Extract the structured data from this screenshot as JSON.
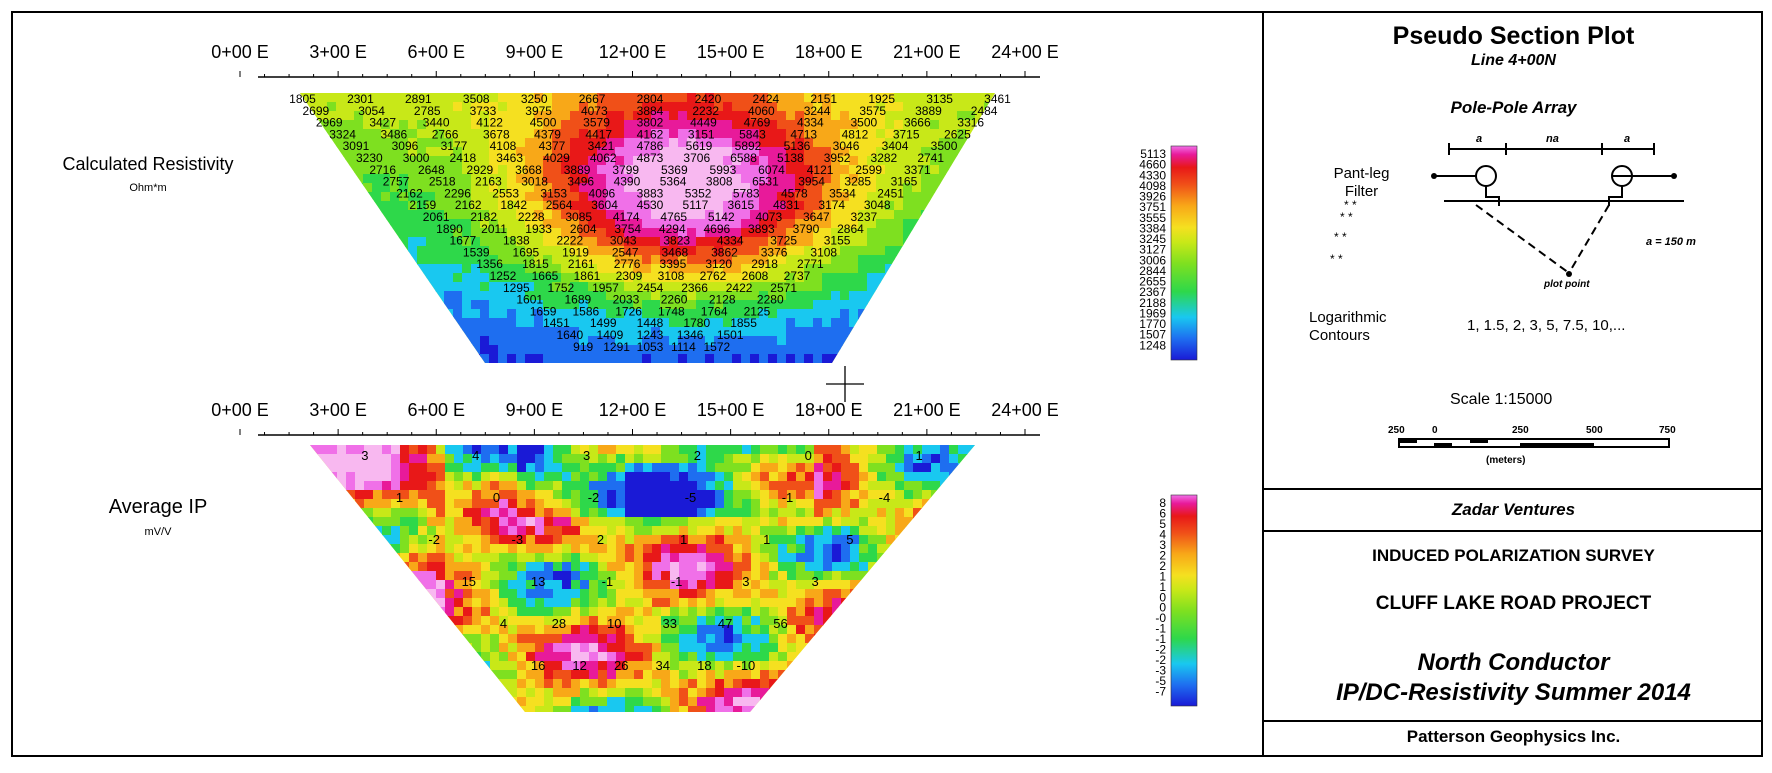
{
  "chart_data": [
    {
      "type": "heatmap",
      "title": "Calculated Resistivity",
      "units": "Ohm*m",
      "x_ticks": [
        "0+00 E",
        "3+00 E",
        "6+00 E",
        "9+00 E",
        "12+00 E",
        "15+00 E",
        "18+00 E",
        "21+00 E",
        "24+00 E"
      ],
      "colorbar_labels": [
        "5113",
        "4660",
        "4330",
        "4098",
        "3926",
        "3751",
        "3555",
        "3384",
        "3245",
        "3127",
        "3006",
        "2844",
        "2655",
        "2367",
        "2188",
        "1969",
        "1770",
        "1507",
        "1248"
      ],
      "contour_labels": [
        [
          "1805",
          "2301",
          "2891",
          "3508",
          "3250",
          "2667",
          "2804",
          "2420",
          "2424",
          "2151",
          "1925",
          "3135",
          "3461"
        ],
        [
          "2699",
          "3054",
          "2785",
          "3733",
          "3975",
          "4073",
          "3884",
          "2232",
          "4060",
          "3244",
          "3575",
          "3889",
          "2484"
        ],
        [
          "2969",
          "3427",
          "3440",
          "4122",
          "4500",
          "3579",
          "3802",
          "4449",
          "4769",
          "4334",
          "3500",
          "3666",
          "3316"
        ],
        [
          "3324",
          "3486",
          "2766",
          "3678",
          "4379",
          "4417",
          "4162",
          "3151",
          "5843",
          "4713",
          "4812",
          "3715",
          "2625"
        ],
        [
          "3091",
          "3096",
          "3177",
          "4108",
          "4377",
          "3421",
          "4786",
          "5619",
          "5892",
          "5136",
          "3046",
          "3404",
          "3500"
        ],
        [
          "3230",
          "3000",
          "2418",
          "3463",
          "4029",
          "4062",
          "4873",
          "3706",
          "6588",
          "5138",
          "3952",
          "3282",
          "2741"
        ],
        [
          "2716",
          "2648",
          "2929",
          "3668",
          "3889",
          "3799",
          "5369",
          "5993",
          "6074",
          "4121",
          "2599",
          "3371"
        ],
        [
          "2757",
          "2518",
          "2163",
          "3018",
          "3496",
          "4390",
          "5364",
          "3808",
          "6531",
          "3954",
          "3285",
          "3165"
        ],
        [
          "2162",
          "2296",
          "2553",
          "3153",
          "4096",
          "3883",
          "5352",
          "5783",
          "4578",
          "3534",
          "2451"
        ],
        [
          "2159",
          "2162",
          "1842",
          "2564",
          "3604",
          "4530",
          "5117",
          "3615",
          "4831",
          "3174",
          "3048"
        ],
        [
          "2061",
          "2182",
          "2228",
          "3085",
          "4174",
          "4765",
          "5142",
          "4073",
          "3647",
          "3237"
        ],
        [
          "1890",
          "2011",
          "1933",
          "2604",
          "3754",
          "4294",
          "4696",
          "3893",
          "3790",
          "2864"
        ],
        [
          "1677",
          "1838",
          "2222",
          "3043",
          "3823",
          "4334",
          "3725",
          "3155"
        ],
        [
          "1539",
          "1695",
          "1919",
          "2547",
          "3468",
          "3862",
          "3376",
          "3108"
        ],
        [
          "1356",
          "1815",
          "2161",
          "2776",
          "3395",
          "3120",
          "2918",
          "2771"
        ],
        [
          "1252",
          "1665",
          "1861",
          "2309",
          "3108",
          "2762",
          "2608",
          "2737"
        ],
        [
          "1295",
          "1752",
          "1957",
          "2454",
          "2366",
          "2422",
          "2571"
        ],
        [
          "1601",
          "1689",
          "2033",
          "2260",
          "2128",
          "2280"
        ],
        [
          "1659",
          "1586",
          "1726",
          "1748",
          "1764",
          "2125"
        ],
        [
          "1451",
          "1499",
          "1448",
          "1780",
          "1855"
        ],
        [
          "1640",
          "1409",
          "1243",
          "1346",
          "1501"
        ],
        [
          "919",
          "1291",
          "1053",
          "1114",
          "1572"
        ]
      ]
    },
    {
      "type": "heatmap",
      "title": "Average IP",
      "units": "mV/V",
      "x_ticks": [
        "0+00 E",
        "3+00 E",
        "6+00 E",
        "9+00 E",
        "12+00 E",
        "15+00 E",
        "18+00 E",
        "21+00 E",
        "24+00 E"
      ],
      "colorbar_labels": [
        "8",
        "6",
        "5",
        "4",
        "3",
        "2",
        "2",
        "1",
        "1",
        "0",
        "0",
        "-0",
        "-1",
        "-1",
        "-2",
        "-2",
        "-3",
        "-5",
        "-7"
      ],
      "contour_labels": [
        "3",
        "4",
        "3",
        "2",
        "0",
        "1",
        "1",
        "0",
        "-2",
        "-5",
        "-1",
        "-4",
        "-2",
        "-3",
        "2",
        "1",
        "1",
        "5",
        "15",
        "13",
        "-1",
        "-1",
        "3",
        "3",
        "4",
        "28",
        "10",
        "33",
        "47",
        "56",
        "16",
        "12",
        "26",
        "34",
        "18",
        "-10"
      ]
    }
  ],
  "panel": {
    "title": "Pseudo Section Plot",
    "line": "Line 4+00N",
    "array": "Pole-Pole Array",
    "array_labels": {
      "a1": "a",
      "na": "na",
      "a2": "a"
    },
    "spacing": "a = 150 m",
    "plot_point": "plot point",
    "filter_title": "Pant-leg Filter",
    "contours_label": "Logarithmic Contours",
    "contours_values": "1, 1.5, 2, 3, 5, 7.5, 10,...",
    "scale_text": "Scale 1:15000",
    "scale_ticks": [
      "250",
      "0",
      "250",
      "500",
      "750"
    ],
    "scale_unit": "(meters)",
    "client": "Zadar Ventures",
    "survey": "INDUCED POLARIZATION SURVEY",
    "project": "CLUFF LAKE ROAD PROJECT",
    "target": "North Conductor",
    "season": "IP/DC-Resistivity Summer 2014",
    "company": "Patterson Geophysics Inc."
  },
  "palette": [
    "#1a1ad6",
    "#1e6ef0",
    "#19c8f0",
    "#2ed84a",
    "#7ee020",
    "#c8e818",
    "#f5e020",
    "#f8a818",
    "#f05018",
    "#e81818",
    "#e81a9a",
    "#f070e8",
    "#f8b8f0"
  ]
}
